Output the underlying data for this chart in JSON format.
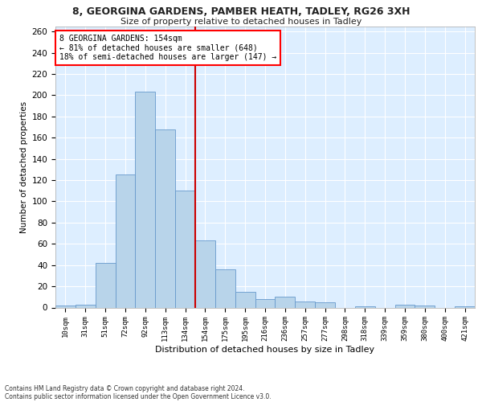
{
  "title1": "8, GEORGINA GARDENS, PAMBER HEATH, TADLEY, RG26 3XH",
  "title2": "Size of property relative to detached houses in Tadley",
  "xlabel": "Distribution of detached houses by size in Tadley",
  "ylabel": "Number of detached properties",
  "footnote1": "Contains HM Land Registry data © Crown copyright and database right 2024.",
  "footnote2": "Contains public sector information licensed under the Open Government Licence v3.0.",
  "annotation_line1": "8 GEORGINA GARDENS: 154sqm",
  "annotation_line2": "← 81% of detached houses are smaller (648)",
  "annotation_line3": "18% of semi-detached houses are larger (147) →",
  "bar_labels": [
    "10sqm",
    "31sqm",
    "51sqm",
    "72sqm",
    "92sqm",
    "113sqm",
    "134sqm",
    "154sqm",
    "175sqm",
    "195sqm",
    "216sqm",
    "236sqm",
    "257sqm",
    "277sqm",
    "298sqm",
    "318sqm",
    "339sqm",
    "359sqm",
    "380sqm",
    "400sqm",
    "421sqm"
  ],
  "bar_heights": [
    2,
    3,
    42,
    125,
    203,
    168,
    110,
    63,
    36,
    15,
    8,
    10,
    6,
    5,
    0,
    1,
    0,
    3,
    2,
    0,
    1
  ],
  "bar_color": "#b8d4ea",
  "bar_edge_color": "#6699cc",
  "vline_color": "#cc0000",
  "background_color": "#ddeeff",
  "grid_color": "#ffffff",
  "fig_bg_color": "#ffffff",
  "ylim": [
    0,
    265
  ],
  "yticks": [
    0,
    20,
    40,
    60,
    80,
    100,
    120,
    140,
    160,
    180,
    200,
    220,
    240,
    260
  ]
}
